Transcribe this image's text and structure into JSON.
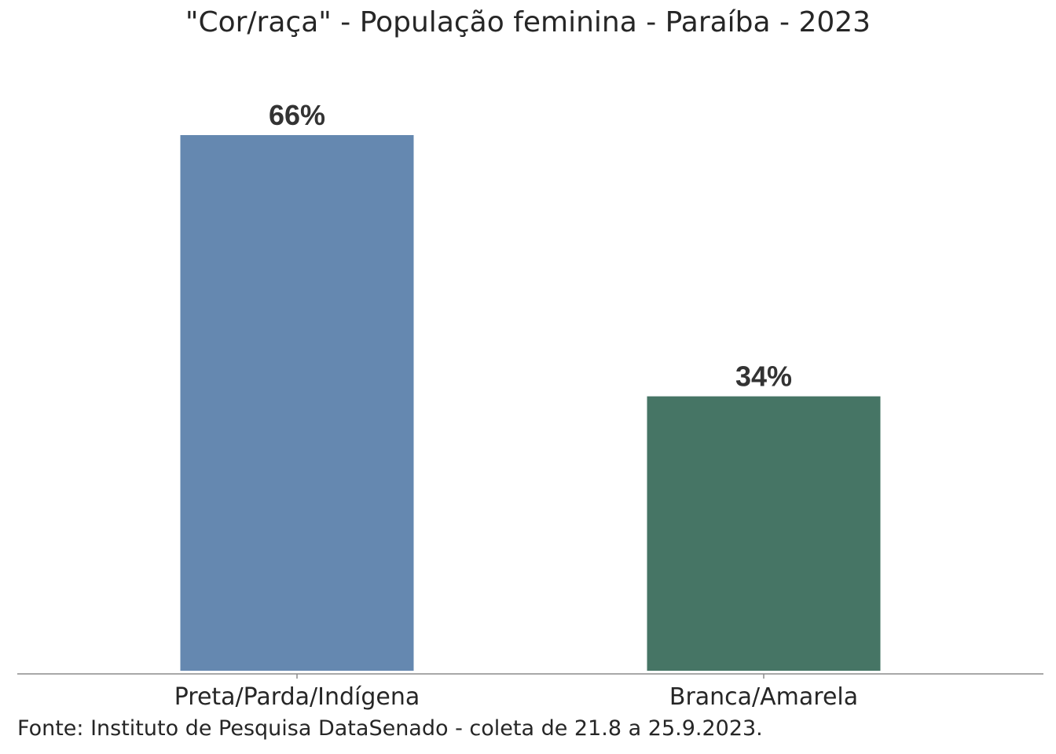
{
  "chart_data": {
    "type": "bar",
    "title": "\"Cor/raça\" - População feminina - Paraíba - 2023",
    "categories": [
      "Preta/Parda/Indígena",
      "Branca/Amarela"
    ],
    "values": [
      66,
      34
    ],
    "value_labels": [
      "66%",
      "34%"
    ],
    "colors": [
      "#6588b0",
      "#467565"
    ],
    "axis_color": "#8c8c8c",
    "ylim": [
      0,
      66
    ],
    "grid": false,
    "legend": "none",
    "source": "Fonte: Instituto de Pesquisa DataSenado - coleta de 21.8 a 25.9.2023."
  }
}
